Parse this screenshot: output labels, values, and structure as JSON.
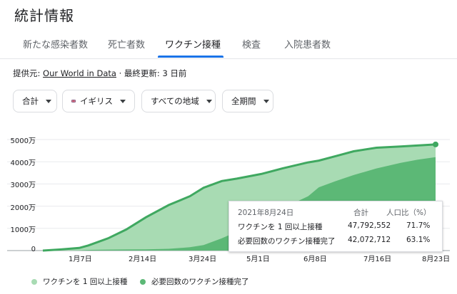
{
  "title": "統計情報",
  "tabs": [
    {
      "label": "新たな感染者数"
    },
    {
      "label": "死亡者数"
    },
    {
      "label": "ワクチン接種"
    },
    {
      "label": "検査"
    },
    {
      "label": "入院患者数"
    }
  ],
  "active_tab": "ワクチン接種",
  "source": {
    "prefix": "提供元: ",
    "link": "Our World in Data",
    "suffix": " · 最終更新: 3 日前"
  },
  "filters": {
    "metric": "合計",
    "country": "イギリス",
    "region": "すべての地域",
    "period": "全期間"
  },
  "colors": {
    "series_first": "#a8dbb3",
    "series_full": "#5cb876",
    "line": "#3fa860",
    "accent": "#1a73e8"
  },
  "chart_data": {
    "type": "area",
    "x_ticks": [
      "1月7日",
      "2月14日",
      "3月24日",
      "5月1日",
      "6月8日",
      "7月16日",
      "8月23日"
    ],
    "y_ticks": [
      "0",
      "1000万",
      "2000万",
      "3000万",
      "4000万",
      "5000万"
    ],
    "ylim": [
      0,
      52000000
    ],
    "x_dates": [
      "2020-12-08",
      "2020-12-20",
      "2021-01-01",
      "2021-01-07",
      "2021-01-20",
      "2021-02-01",
      "2021-02-14",
      "2021-03-01",
      "2021-03-15",
      "2021-03-24",
      "2021-04-05",
      "2021-04-15",
      "2021-05-01",
      "2021-05-15",
      "2021-06-01",
      "2021-06-08",
      "2021-06-20",
      "2021-07-01",
      "2021-07-16",
      "2021-08-01",
      "2021-08-12",
      "2021-08-24"
    ],
    "series": [
      {
        "name": "ワクチンを 1 回以上接種",
        "values": [
          0,
          500000,
          1200000,
          2300000,
          5500000,
          9500000,
          15000000,
          20500000,
          24500000,
          28300000,
          31300000,
          32400000,
          34500000,
          37000000,
          39700000,
          40500000,
          42700000,
          44700000,
          46300000,
          46900000,
          47300000,
          47792552
        ]
      },
      {
        "name": "必要回数のワクチン接種完了",
        "values": [
          0,
          0,
          100000,
          300000,
          450000,
          500000,
          550000,
          800000,
          1500000,
          2500000,
          5500000,
          8500000,
          14500000,
          19000000,
          24500000,
          28500000,
          31500000,
          34000000,
          37000000,
          39500000,
          40900000,
          42072712
        ]
      }
    ]
  },
  "tooltip": {
    "date": "2021年8月24日",
    "col_total": "合計",
    "col_pct": "人口比（%）",
    "rows": [
      {
        "label": "ワクチンを 1 回以上接種",
        "total": "47,792,552",
        "pct": "71.7%"
      },
      {
        "label": "必要回数のワクチン接種完了",
        "total": "42,072,712",
        "pct": "63.1%"
      }
    ]
  },
  "legend": [
    {
      "label": "ワクチンを 1 回以上接種"
    },
    {
      "label": "必要回数のワクチン接種完了"
    }
  ]
}
